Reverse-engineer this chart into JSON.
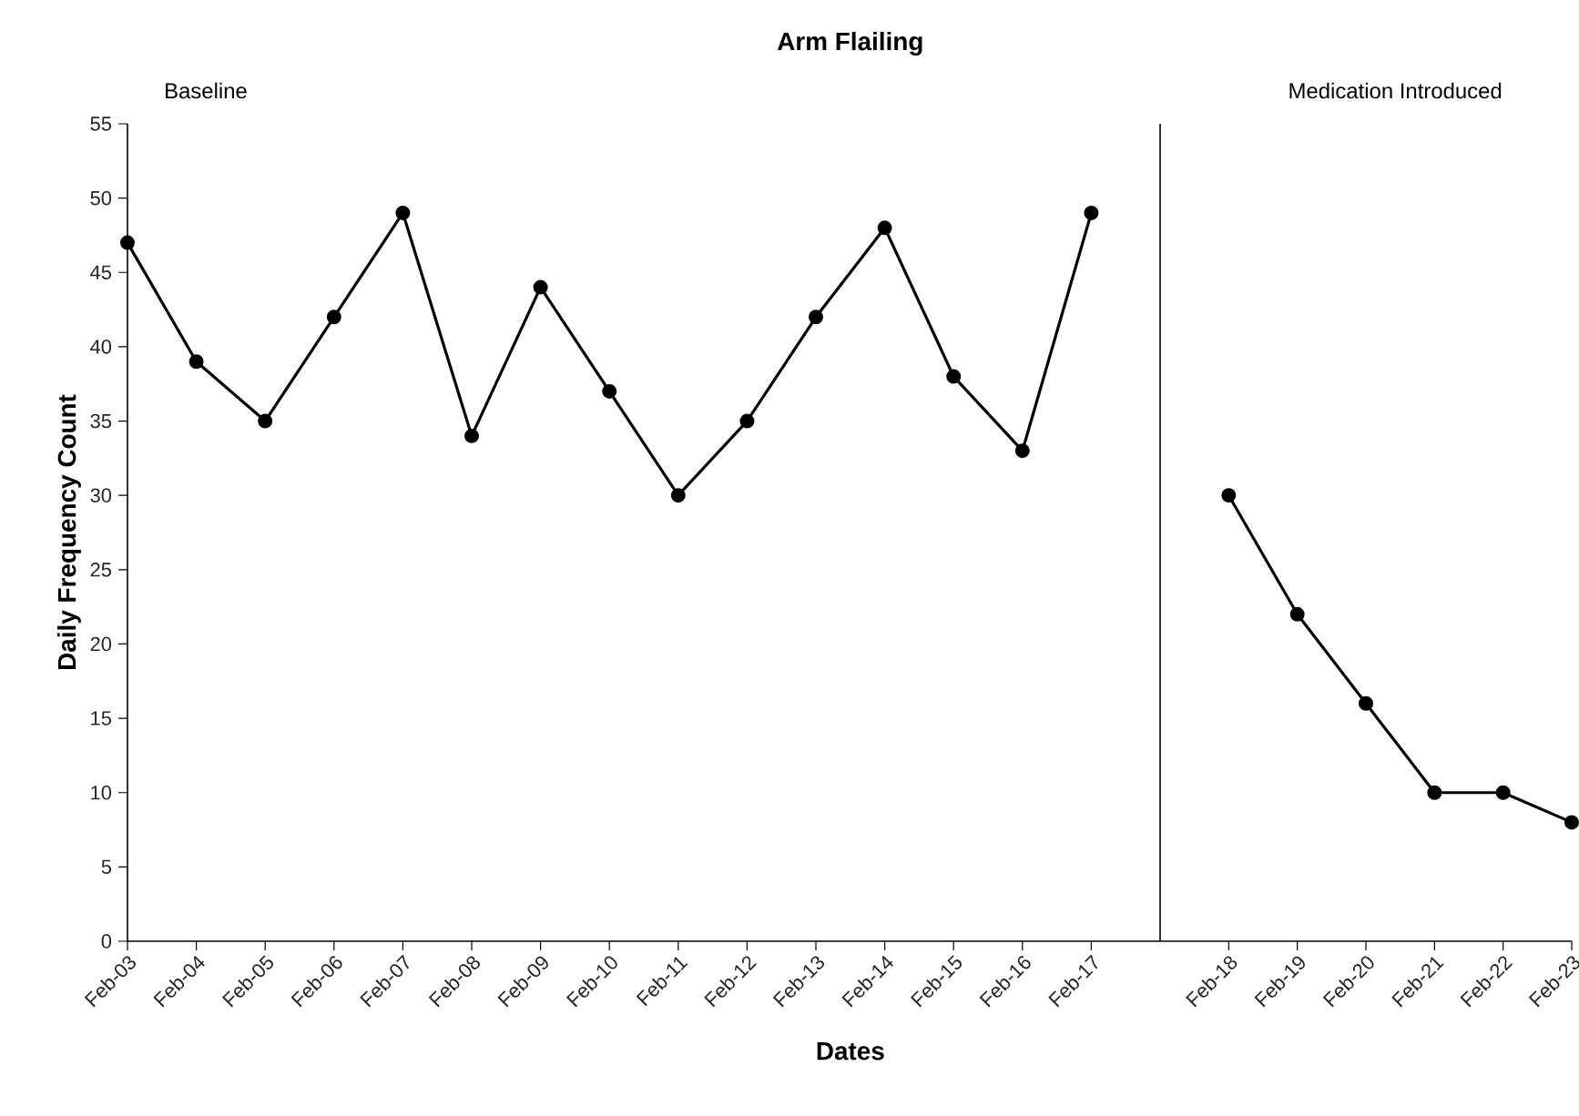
{
  "chart_data": [
    {
      "type": "line",
      "title": "Arm Flailing",
      "xlabel": "Dates",
      "ylabel": "Daily Frequency Count",
      "annotations": [
        "Baseline"
      ],
      "categories": [
        "Feb-03",
        "Feb-04",
        "Feb-05",
        "Feb-06",
        "Feb-07",
        "Feb-08",
        "Feb-09",
        "Feb-10",
        "Feb-11",
        "Feb-12",
        "Feb-13",
        "Feb-14",
        "Feb-15",
        "Feb-16",
        "Feb-17"
      ],
      "series": [
        {
          "color": "#000000",
          "values": [
            47,
            39,
            35,
            42,
            49,
            34,
            44,
            37,
            30,
            35,
            42,
            48,
            38,
            33,
            49
          ]
        }
      ],
      "ylim": [
        0,
        55
      ],
      "yticks": [
        0,
        5,
        10,
        15,
        20,
        25,
        30,
        35,
        40,
        45,
        50,
        55
      ],
      "marker": "circle",
      "grid": false
    },
    {
      "type": "line",
      "annotations": [
        "Medication Introduced"
      ],
      "categories": [
        "Feb-18",
        "Feb-19",
        "Feb-20",
        "Feb-21",
        "Feb-22",
        "Feb-23"
      ],
      "series": [
        {
          "color": "#000000",
          "values": [
            30,
            22,
            16,
            10,
            10,
            8
          ]
        }
      ],
      "ylim": [
        0,
        55
      ],
      "tick_labels": "x",
      "marker": "circle",
      "grid": false
    }
  ]
}
